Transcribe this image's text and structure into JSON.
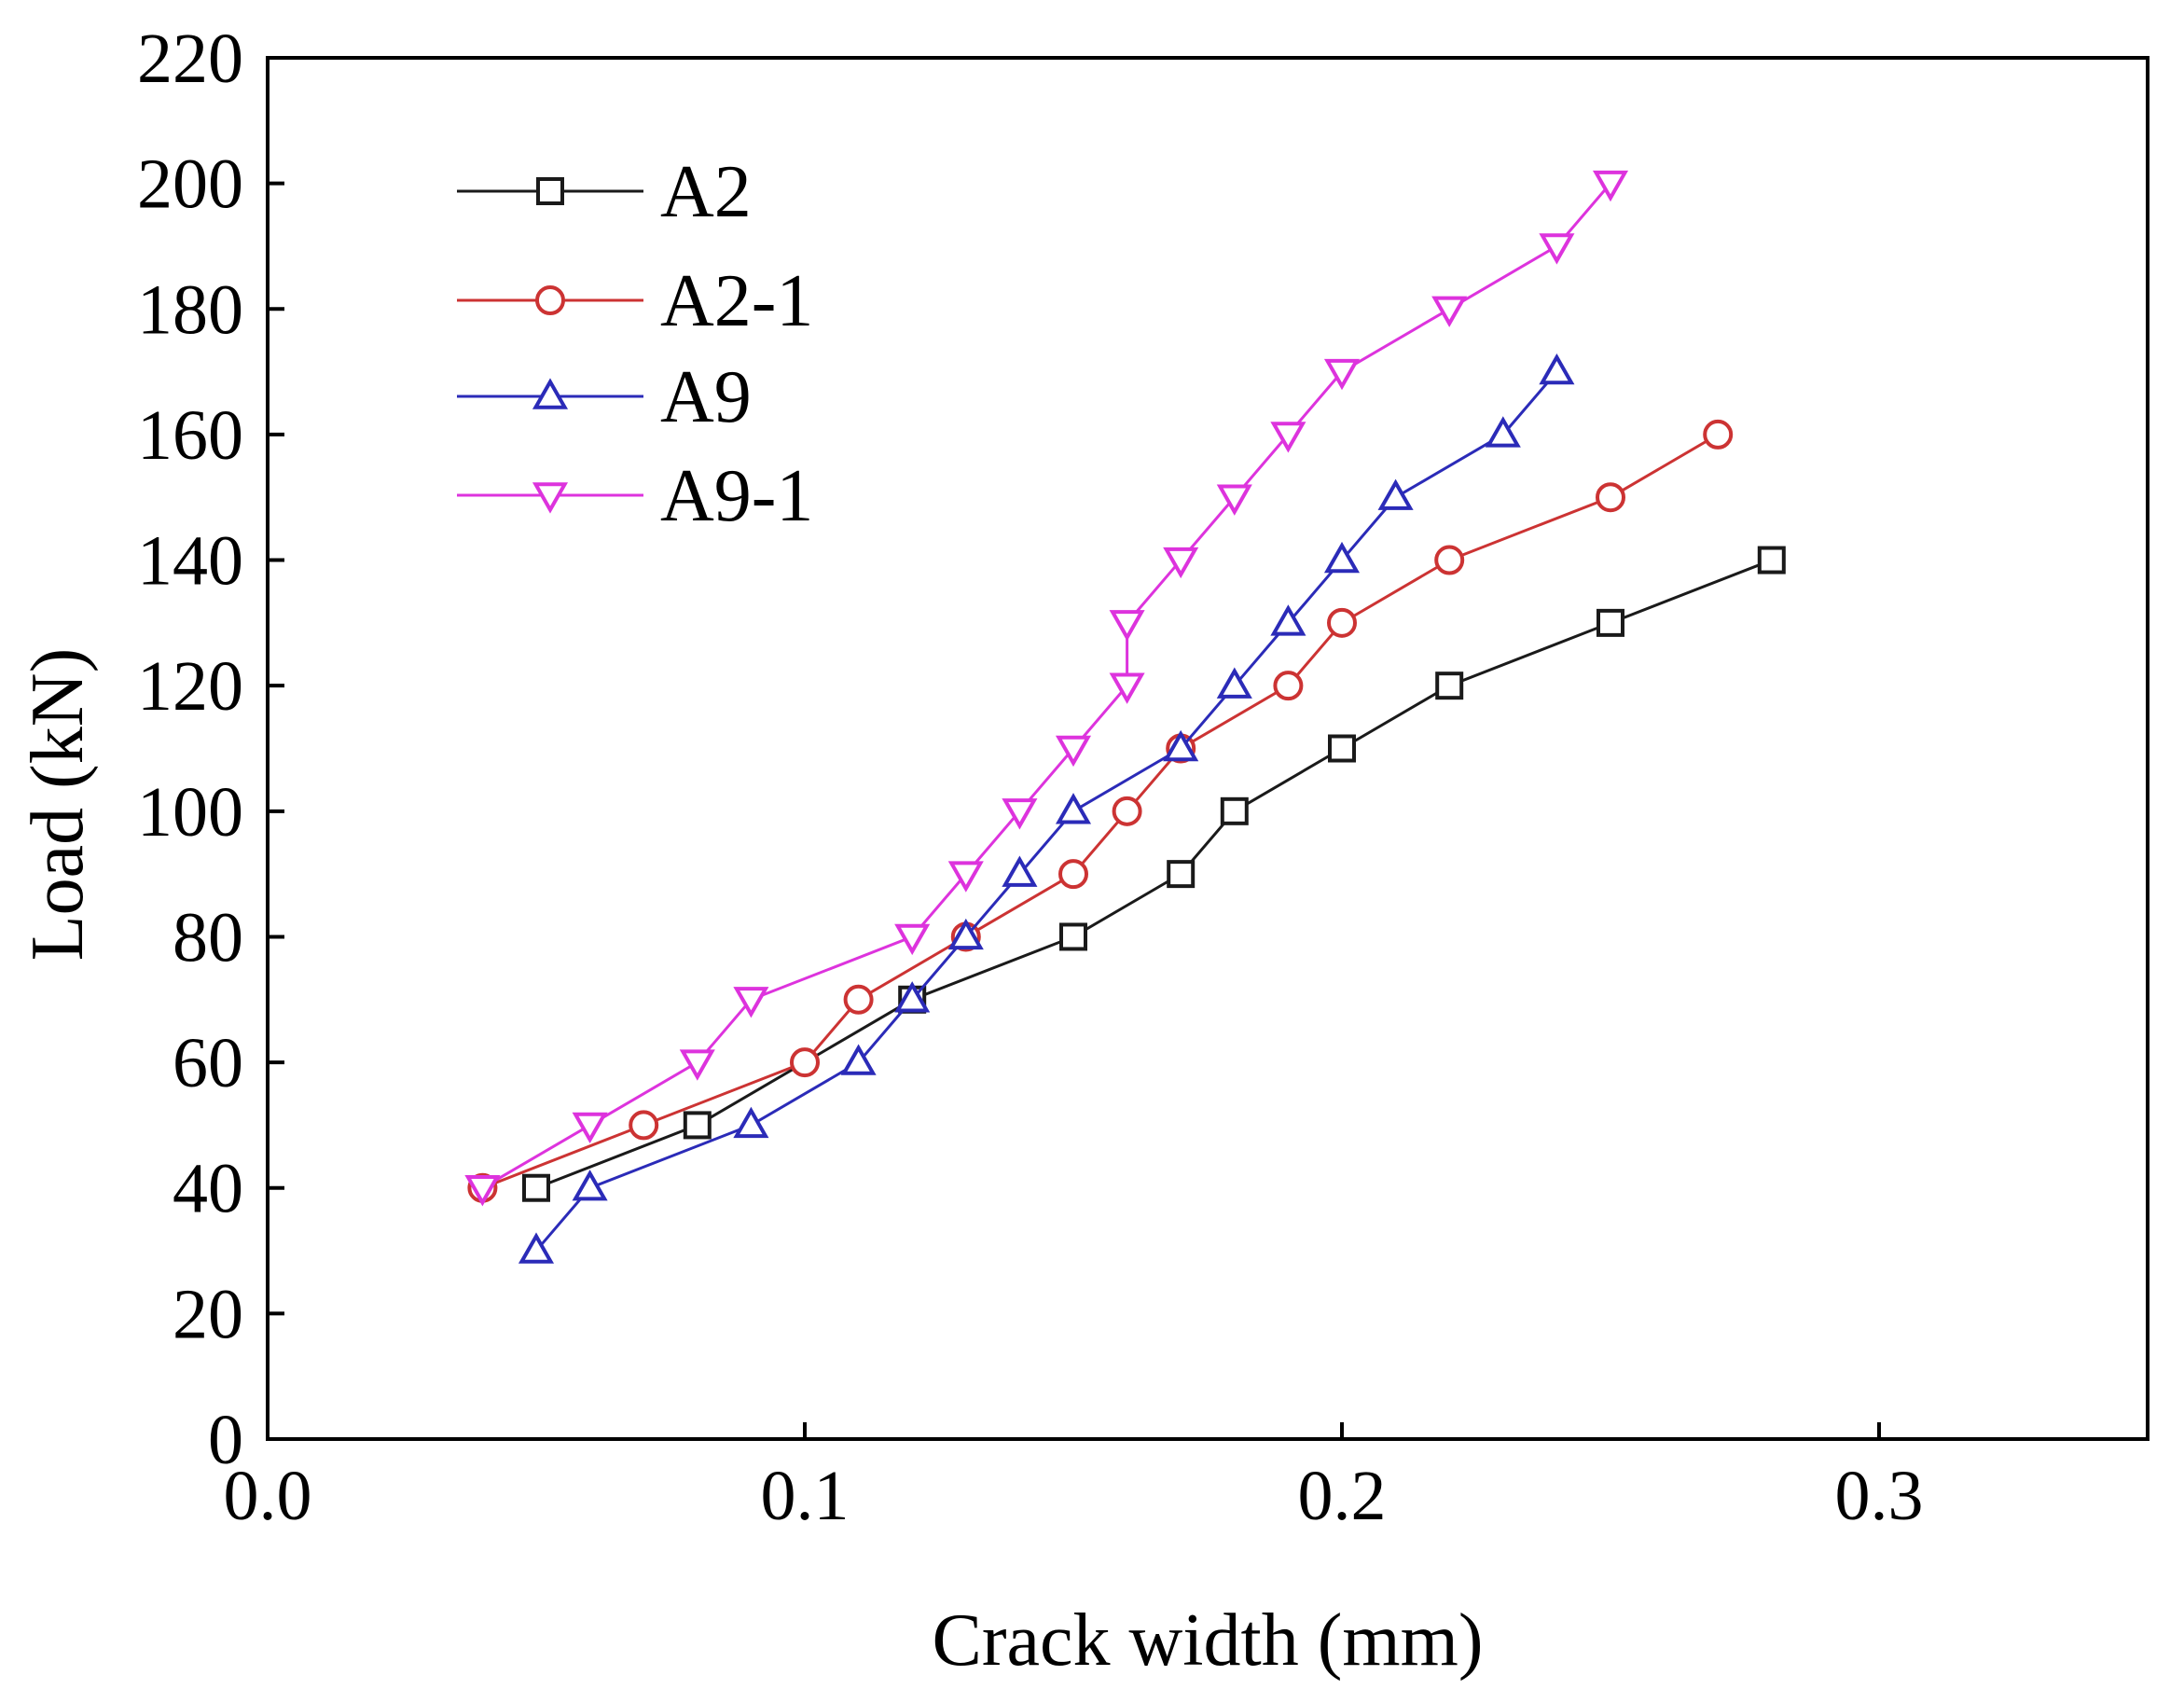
{
  "chart_data": {
    "type": "line",
    "title": "",
    "xlabel": "Crack width (mm)",
    "ylabel": "Load (kN)",
    "xlim": [
      0.0,
      0.35
    ],
    "ylim": [
      0,
      220
    ],
    "xticks": [
      0.0,
      0.1,
      0.2,
      0.3
    ],
    "xtick_labels": [
      "0.0",
      "0.1",
      "0.2",
      "0.3"
    ],
    "yticks": [
      0,
      20,
      40,
      60,
      80,
      100,
      120,
      140,
      160,
      180,
      200,
      220
    ],
    "ytick_labels": [
      "0",
      "20",
      "40",
      "60",
      "80",
      "100",
      "120",
      "140",
      "160",
      "180",
      "200",
      "220"
    ],
    "grid": false,
    "legend_position": "top-left",
    "series": [
      {
        "name": "A2",
        "color": "#1a1a1a",
        "marker": "square",
        "x": [
          0.05,
          0.08,
          0.12,
          0.15,
          0.17,
          0.18,
          0.2,
          0.22,
          0.25,
          0.28
        ],
        "y": [
          40,
          50,
          70,
          80,
          90,
          100,
          110,
          120,
          130,
          140
        ]
      },
      {
        "name": "A2-1",
        "color": "#cc3333",
        "marker": "circle",
        "x": [
          0.04,
          0.07,
          0.1,
          0.11,
          0.13,
          0.15,
          0.16,
          0.17,
          0.19,
          0.2,
          0.22,
          0.25,
          0.27
        ],
        "y": [
          40,
          50,
          60,
          70,
          80,
          90,
          100,
          110,
          120,
          130,
          140,
          150,
          160
        ]
      },
      {
        "name": "A9",
        "color": "#2b2bb8",
        "marker": "triangle-up",
        "x": [
          0.05,
          0.06,
          0.09,
          0.11,
          0.12,
          0.13,
          0.14,
          0.15,
          0.17,
          0.18,
          0.19,
          0.2,
          0.21,
          0.23,
          0.24
        ],
        "y": [
          30,
          40,
          50,
          60,
          70,
          80,
          90,
          100,
          110,
          120,
          130,
          140,
          150,
          160,
          170
        ]
      },
      {
        "name": "A9-1",
        "color": "#dd33dd",
        "marker": "triangle-down",
        "x": [
          0.04,
          0.06,
          0.08,
          0.09,
          0.12,
          0.13,
          0.14,
          0.15,
          0.16,
          0.16,
          0.17,
          0.18,
          0.19,
          0.2,
          0.22,
          0.24,
          0.25
        ],
        "y": [
          40,
          50,
          60,
          70,
          80,
          90,
          100,
          110,
          120,
          130,
          140,
          150,
          160,
          170,
          180,
          190,
          200
        ]
      }
    ]
  }
}
